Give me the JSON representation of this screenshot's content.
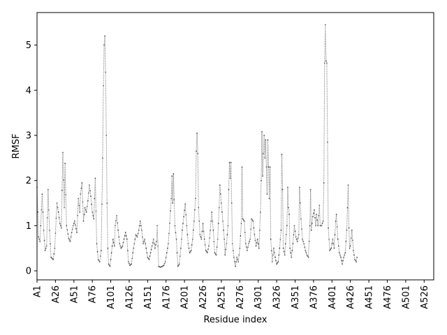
{
  "chart_data": {
    "type": "line",
    "title": "",
    "xlabel": "Residue index",
    "ylabel": "RMSF",
    "xlim": [
      1,
      539
    ],
    "ylim": [
      -0.2,
      5.72
    ],
    "grid": false,
    "legend": "none",
    "line_color": "#7f7f7f",
    "marker_color": "#555555",
    "y_ticks": [
      0,
      1,
      2,
      3,
      4,
      5
    ],
    "x_tick_values": [
      1,
      26,
      51,
      76,
      101,
      126,
      151,
      176,
      201,
      226,
      251,
      276,
      301,
      326,
      351,
      376,
      401,
      426,
      451,
      476,
      501,
      526
    ],
    "x_tick_labels": [
      "A1",
      "A26",
      "A51",
      "A76",
      "A101",
      "A126",
      "A151",
      "A176",
      "A201",
      "A226",
      "A251",
      "A276",
      "A301",
      "A326",
      "A351",
      "A376",
      "A401",
      "A426",
      "A451",
      "A476",
      "A501",
      "A526"
    ],
    "series": [
      {
        "anchors": [
          [
            1,
            1.85
          ],
          [
            3,
            0.75
          ],
          [
            5,
            0.65
          ],
          [
            8,
            1.7
          ],
          [
            10,
            0.9
          ],
          [
            12,
            0.45
          ],
          [
            14,
            0.55
          ],
          [
            16,
            1.8
          ],
          [
            18,
            0.9
          ],
          [
            20,
            0.3
          ],
          [
            23,
            0.25
          ],
          [
            25,
            0.5
          ],
          [
            28,
            1.5
          ],
          [
            30,
            1.3
          ],
          [
            32,
            1.05
          ],
          [
            34,
            0.95
          ],
          [
            36,
            2.62
          ],
          [
            38,
            1.4
          ],
          [
            39,
            2.38
          ],
          [
            41,
            1.0
          ],
          [
            44,
            0.72
          ],
          [
            46,
            0.65
          ],
          [
            48,
            0.85
          ],
          [
            50,
            1.0
          ],
          [
            52,
            1.1
          ],
          [
            55,
            0.85
          ],
          [
            57,
            1.6
          ],
          [
            59,
            1.3
          ],
          [
            60,
            1.7
          ],
          [
            62,
            1.95
          ],
          [
            64,
            1.1
          ],
          [
            66,
            1.4
          ],
          [
            68,
            1.3
          ],
          [
            70,
            1.55
          ],
          [
            72,
            1.9
          ],
          [
            74,
            1.65
          ],
          [
            76,
            1.3
          ],
          [
            78,
            1.15
          ],
          [
            80,
            2.05
          ],
          [
            82,
            0.6
          ],
          [
            84,
            0.25
          ],
          [
            86,
            0.2
          ],
          [
            88,
            0.45
          ],
          [
            90,
            2.5
          ],
          [
            91,
            4.1
          ],
          [
            92,
            5.0
          ],
          [
            93,
            5.2
          ],
          [
            94,
            4.4
          ],
          [
            95,
            3.0
          ],
          [
            96,
            1.5
          ],
          [
            97,
            0.5
          ],
          [
            98,
            0.15
          ],
          [
            100,
            0.1
          ],
          [
            102,
            0.4
          ],
          [
            104,
            0.7
          ],
          [
            106,
            0.55
          ],
          [
            107,
            1.0
          ],
          [
            109,
            1.22
          ],
          [
            111,
            0.9
          ],
          [
            113,
            0.6
          ],
          [
            115,
            0.5
          ],
          [
            117,
            0.55
          ],
          [
            119,
            0.7
          ],
          [
            121,
            0.85
          ],
          [
            123,
            0.7
          ],
          [
            125,
            0.2
          ],
          [
            127,
            0.12
          ],
          [
            129,
            0.15
          ],
          [
            131,
            0.4
          ],
          [
            133,
            0.6
          ],
          [
            135,
            0.8
          ],
          [
            137,
            0.75
          ],
          [
            139,
            0.9
          ],
          [
            141,
            1.1
          ],
          [
            143,
            0.9
          ],
          [
            145,
            0.6
          ],
          [
            147,
            0.7
          ],
          [
            149,
            0.5
          ],
          [
            151,
            0.3
          ],
          [
            153,
            0.25
          ],
          [
            155,
            0.4
          ],
          [
            157,
            0.55
          ],
          [
            159,
            0.7
          ],
          [
            161,
            0.5
          ],
          [
            163,
            0.65
          ],
          [
            164,
            1.0
          ],
          [
            166,
            0.1
          ],
          [
            168,
            0.08
          ],
          [
            171,
            0.1
          ],
          [
            173,
            0.12
          ],
          [
            175,
            0.2
          ],
          [
            177,
            0.4
          ],
          [
            179,
            0.6
          ],
          [
            181,
            1.05
          ],
          [
            183,
            1.6
          ],
          [
            184,
            2.1
          ],
          [
            185,
            1.5
          ],
          [
            186,
            2.15
          ],
          [
            188,
            1.0
          ],
          [
            190,
            0.7
          ],
          [
            192,
            0.1
          ],
          [
            194,
            0.15
          ],
          [
            196,
            0.5
          ],
          [
            198,
            0.9
          ],
          [
            200,
            1.2
          ],
          [
            202,
            1.48
          ],
          [
            204,
            1.0
          ],
          [
            206,
            0.6
          ],
          [
            208,
            0.4
          ],
          [
            210,
            0.45
          ],
          [
            212,
            0.7
          ],
          [
            214,
            1.1
          ],
          [
            216,
            1.6
          ],
          [
            217,
            2.65
          ],
          [
            218,
            3.05
          ],
          [
            219,
            2.6
          ],
          [
            220,
            1.4
          ],
          [
            222,
            0.8
          ],
          [
            224,
            0.7
          ],
          [
            226,
            1.05
          ],
          [
            228,
            0.7
          ],
          [
            230,
            0.45
          ],
          [
            232,
            0.4
          ],
          [
            234,
            0.55
          ],
          [
            236,
            0.9
          ],
          [
            238,
            1.3
          ],
          [
            240,
            0.9
          ],
          [
            242,
            0.4
          ],
          [
            244,
            0.35
          ],
          [
            246,
            0.7
          ],
          [
            248,
            1.4
          ],
          [
            249,
            1.9
          ],
          [
            251,
            1.5
          ],
          [
            253,
            1.1
          ],
          [
            255,
            0.7
          ],
          [
            256,
            0.35
          ],
          [
            258,
            0.6
          ],
          [
            260,
            1.0
          ],
          [
            261,
            1.8
          ],
          [
            262,
            2.4
          ],
          [
            263,
            2.05
          ],
          [
            264,
            2.4
          ],
          [
            265,
            1.5
          ],
          [
            266,
            0.6
          ],
          [
            268,
            0.3
          ],
          [
            270,
            0.1
          ],
          [
            272,
            0.3
          ],
          [
            274,
            0.2
          ],
          [
            276,
            0.5
          ],
          [
            278,
            1.05
          ],
          [
            279,
            2.3
          ],
          [
            280,
            1.15
          ],
          [
            282,
            1.1
          ],
          [
            284,
            0.6
          ],
          [
            286,
            0.45
          ],
          [
            288,
            0.6
          ],
          [
            290,
            0.7
          ],
          [
            292,
            1.15
          ],
          [
            294,
            1.1
          ],
          [
            296,
            0.8
          ],
          [
            298,
            0.55
          ],
          [
            300,
            0.7
          ],
          [
            302,
            0.5
          ],
          [
            304,
            1.3
          ],
          [
            305,
            2.0
          ],
          [
            306,
            3.08
          ],
          [
            307,
            2.1
          ],
          [
            308,
            2.6
          ],
          [
            309,
            3.0
          ],
          [
            310,
            2.5
          ],
          [
            311,
            2.9
          ],
          [
            312,
            2.3
          ],
          [
            313,
            1.7
          ],
          [
            314,
            2.9
          ],
          [
            315,
            2.3
          ],
          [
            316,
            1.6
          ],
          [
            317,
            2.3
          ],
          [
            318,
            0.7
          ],
          [
            320,
            0.2
          ],
          [
            322,
            0.5
          ],
          [
            324,
            0.3
          ],
          [
            326,
            0.15
          ],
          [
            328,
            0.2
          ],
          [
            330,
            0.5
          ],
          [
            332,
            0.9
          ],
          [
            333,
            2.58
          ],
          [
            334,
            1.8
          ],
          [
            335,
            0.5
          ],
          [
            337,
            0.35
          ],
          [
            338,
            0.6
          ],
          [
            340,
            1.0
          ],
          [
            341,
            1.85
          ],
          [
            342,
            1.4
          ],
          [
            343,
            1.25
          ],
          [
            344,
            0.5
          ],
          [
            346,
            0.3
          ],
          [
            348,
            0.6
          ],
          [
            350,
            1.0
          ],
          [
            352,
            0.75
          ],
          [
            354,
            0.65
          ],
          [
            356,
            0.8
          ],
          [
            357,
            1.85
          ],
          [
            358,
            1.5
          ],
          [
            359,
            1.15
          ],
          [
            361,
            0.7
          ],
          [
            363,
            0.6
          ],
          [
            365,
            0.45
          ],
          [
            367,
            0.35
          ],
          [
            369,
            0.3
          ],
          [
            371,
            1.0
          ],
          [
            372,
            1.8
          ],
          [
            373,
            0.9
          ],
          [
            375,
            1.2
          ],
          [
            377,
            1.35
          ],
          [
            379,
            1.0
          ],
          [
            380,
            1.25
          ],
          [
            382,
            1.0
          ],
          [
            384,
            1.45
          ],
          [
            385,
            1.0
          ],
          [
            387,
            1.0
          ],
          [
            389,
            1.1
          ],
          [
            390,
            1.95
          ],
          [
            391,
            4.6
          ],
          [
            392,
            5.45
          ],
          [
            393,
            4.65
          ],
          [
            394,
            4.6
          ],
          [
            395,
            2.85
          ],
          [
            396,
            0.95
          ],
          [
            398,
            0.45
          ],
          [
            400,
            0.5
          ],
          [
            402,
            0.7
          ],
          [
            404,
            0.5
          ],
          [
            406,
            1.1
          ],
          [
            407,
            1.25
          ],
          [
            409,
            0.7
          ],
          [
            411,
            0.4
          ],
          [
            413,
            0.3
          ],
          [
            415,
            0.15
          ],
          [
            417,
            0.3
          ],
          [
            419,
            0.4
          ],
          [
            421,
            0.9
          ],
          [
            423,
            1.9
          ],
          [
            424,
            0.95
          ],
          [
            425,
            0.5
          ],
          [
            426,
            0.55
          ],
          [
            428,
            0.9
          ],
          [
            430,
            0.45
          ],
          [
            432,
            0.25
          ],
          [
            434,
            0.2
          ],
          [
            435,
            0.3
          ]
        ]
      }
    ]
  }
}
